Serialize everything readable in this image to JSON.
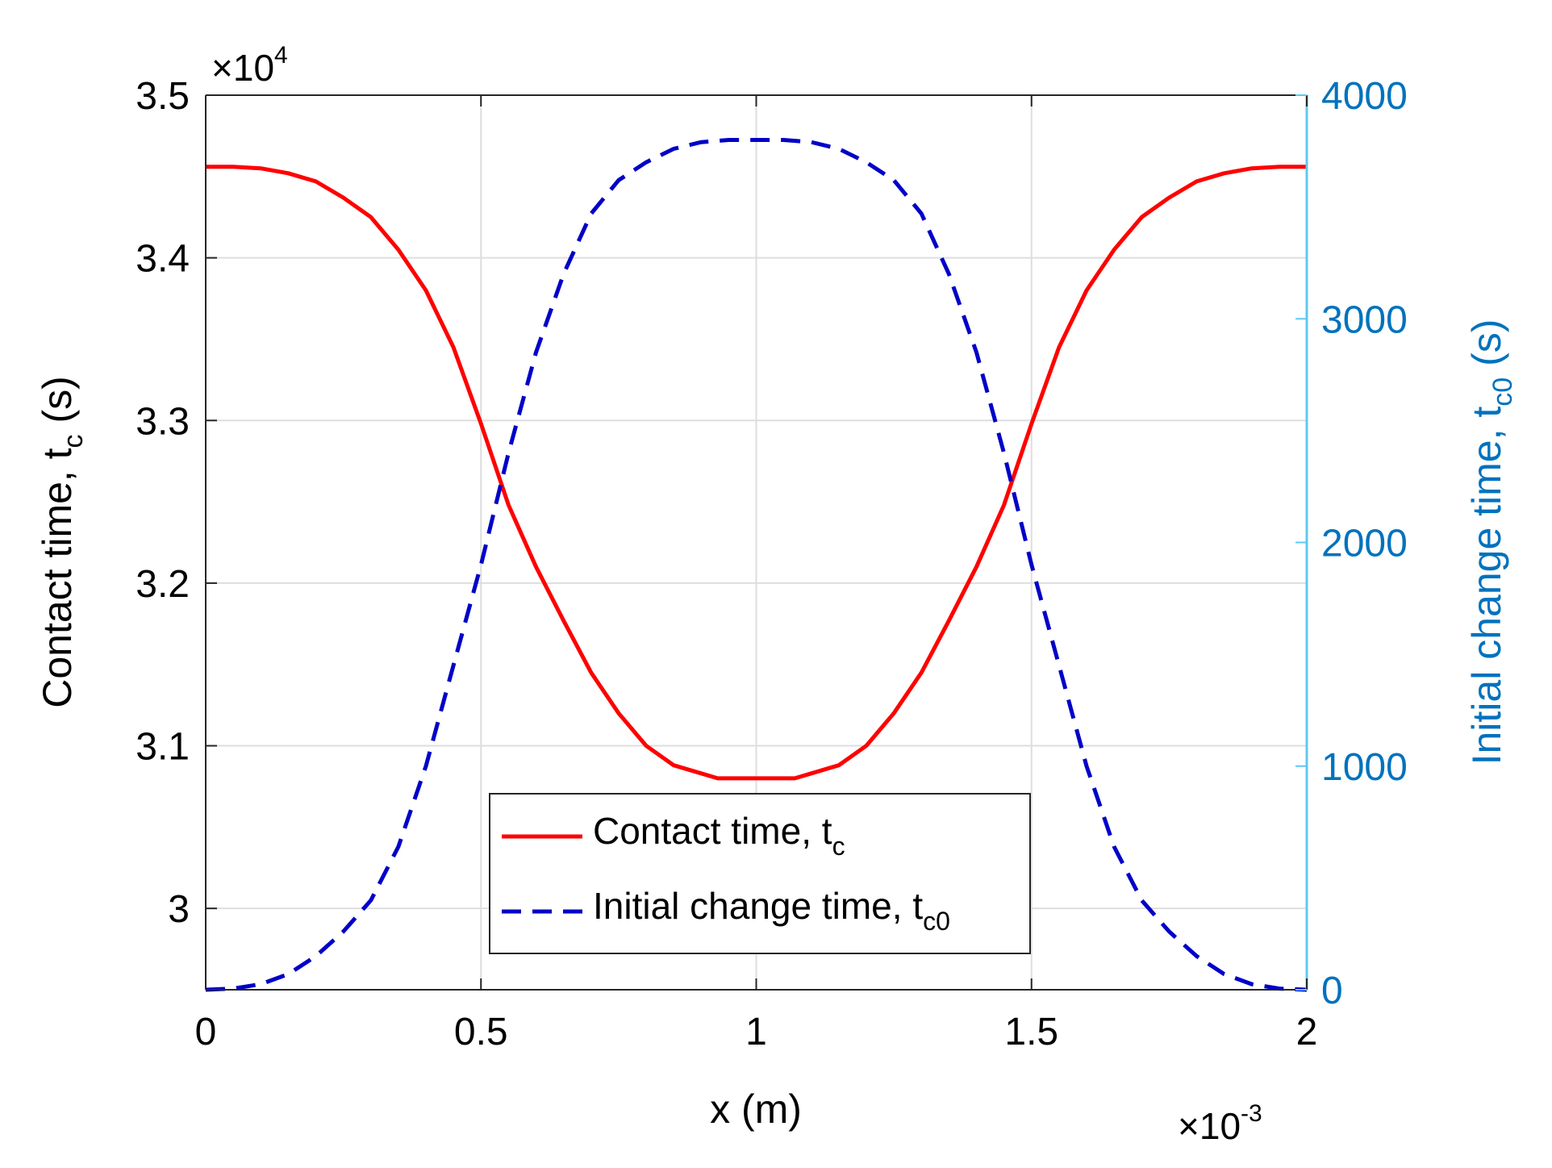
{
  "chart_data": {
    "type": "line",
    "x_axis": {
      "label": "x (m)",
      "range": [
        0,
        2
      ],
      "ticks": [
        0,
        0.5,
        1,
        1.5,
        2
      ],
      "tick_labels": [
        "0",
        "0.5",
        "1",
        "1.5",
        "2"
      ],
      "multiplier_base": "×10",
      "multiplier_exp": "-3"
    },
    "y_left": {
      "label_main": "Contact time, t",
      "label_sub": "c",
      "label_tail": " (s)",
      "range": [
        2.95,
        3.5
      ],
      "ticks": [
        3,
        3.1,
        3.2,
        3.3,
        3.4,
        3.5
      ],
      "tick_labels": [
        "3",
        "3.1",
        "3.2",
        "3.3",
        "3.4",
        "3.5"
      ],
      "multiplier_base": "×10",
      "multiplier_exp": "4",
      "color": "#000000"
    },
    "y_right": {
      "label_main": "Initial change time, t",
      "label_sub": "c0",
      "label_tail": " (s)",
      "range": [
        0,
        4000
      ],
      "ticks": [
        0,
        1000,
        2000,
        3000,
        4000
      ],
      "tick_labels": [
        "0",
        "1000",
        "2000",
        "3000",
        "4000"
      ],
      "color": "#0072BD",
      "axis_line_color": "#5EC8F2"
    },
    "grid": true,
    "series": [
      {
        "name": "Contact time, t",
        "name_sub": "c",
        "axis": "left",
        "style": "solid",
        "color": "#FF0000",
        "x": [
          0,
          0.05,
          0.1,
          0.15,
          0.2,
          0.25,
          0.3,
          0.35,
          0.4,
          0.45,
          0.5,
          0.55,
          0.6,
          0.65,
          0.7,
          0.75,
          0.8,
          0.85,
          0.9,
          0.93,
          0.97,
          1.0,
          1.03,
          1.07,
          1.1,
          1.15,
          1.2,
          1.25,
          1.3,
          1.35,
          1.4,
          1.45,
          1.5,
          1.55,
          1.6,
          1.65,
          1.7,
          1.75,
          1.8,
          1.85,
          1.9,
          1.95,
          2.0
        ],
        "y": [
          3.456,
          3.456,
          3.455,
          3.452,
          3.447,
          3.437,
          3.425,
          3.405,
          3.38,
          3.345,
          3.298,
          3.248,
          3.21,
          3.177,
          3.145,
          3.12,
          3.1,
          3.088,
          3.083,
          3.08,
          3.08,
          3.08,
          3.08,
          3.08,
          3.083,
          3.088,
          3.1,
          3.12,
          3.145,
          3.177,
          3.21,
          3.248,
          3.298,
          3.345,
          3.38,
          3.405,
          3.425,
          3.437,
          3.447,
          3.452,
          3.455,
          3.456,
          3.456
        ]
      },
      {
        "name": "Initial change time, t",
        "name_sub": "c0",
        "axis": "right",
        "style": "dashed",
        "color": "#0000C8",
        "x": [
          0,
          0.05,
          0.1,
          0.15,
          0.2,
          0.25,
          0.3,
          0.35,
          0.4,
          0.45,
          0.5,
          0.55,
          0.6,
          0.65,
          0.7,
          0.75,
          0.8,
          0.85,
          0.9,
          0.95,
          1.0,
          1.05,
          1.1,
          1.15,
          1.2,
          1.25,
          1.3,
          1.35,
          1.4,
          1.45,
          1.5,
          1.55,
          1.6,
          1.65,
          1.7,
          1.75,
          1.8,
          1.85,
          1.9,
          1.95,
          2.0
        ],
        "y": [
          0,
          5,
          25,
          70,
          150,
          260,
          400,
          640,
          1000,
          1450,
          1900,
          2400,
          2850,
          3200,
          3470,
          3620,
          3700,
          3760,
          3790,
          3800,
          3800,
          3800,
          3790,
          3760,
          3700,
          3620,
          3470,
          3200,
          2850,
          2400,
          1900,
          1450,
          1000,
          640,
          400,
          260,
          150,
          70,
          25,
          5,
          0
        ]
      }
    ],
    "legend": {
      "position": "bottom-center"
    }
  }
}
